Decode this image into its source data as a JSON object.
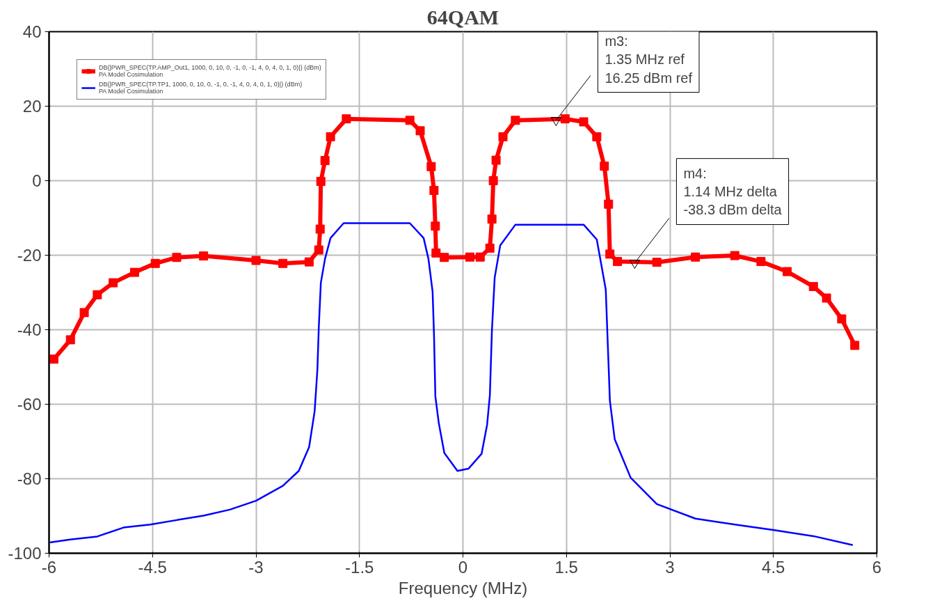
{
  "chart_data": {
    "type": "line",
    "title": "64QAM",
    "xlabel": "Frequency (MHz)",
    "xlim": [
      -6,
      6
    ],
    "xticks": [
      -6,
      -4.5,
      -3,
      -1.5,
      0,
      1.5,
      3,
      4.5,
      6
    ],
    "ylim": [
      -100,
      40
    ],
    "yticks": [
      -100,
      -80,
      -60,
      -40,
      -20,
      0,
      20,
      40
    ],
    "grid": true,
    "legend": "top left",
    "series": [
      {
        "name": "DB(|PWR_SPEC(TP.AMP_Out1, 1000, 0, 10, 0, -1, 0, -1, 4, 0, 4, 0, 1, 0)|) (dBm)\nPA Model Cosimulation",
        "color": "#ff0000",
        "marker": "square",
        "x": [
          -5.93,
          -5.69,
          -5.49,
          -5.3,
          -5.07,
          -4.76,
          -4.46,
          -4.15,
          -3.76,
          -3.0,
          -2.61,
          -2.23,
          -2.09,
          -2.07,
          -2.06,
          -2.0,
          -1.92,
          -1.69,
          -0.77,
          -0.62,
          -0.46,
          -0.42,
          -0.4,
          -0.39,
          -0.27,
          0.1,
          0.25,
          0.39,
          0.42,
          0.44,
          0.48,
          0.58,
          0.76,
          1.48,
          1.75,
          1.94,
          2.05,
          2.11,
          2.13,
          2.24,
          2.81,
          3.37,
          3.94,
          4.32,
          4.7,
          5.08,
          5.27,
          5.49,
          5.68
        ],
        "values": [
          -47.9,
          -42.7,
          -35.4,
          -30.6,
          -27.4,
          -24.6,
          -22.2,
          -20.6,
          -20.2,
          -21.4,
          -22.2,
          -21.8,
          -18.6,
          -13,
          -0.2,
          5.4,
          11.8,
          16.6,
          16.2,
          13.4,
          3.8,
          -2.6,
          -12.2,
          -19.4,
          -20.6,
          -20.5,
          -20.5,
          -18.1,
          -10.3,
          0,
          5.5,
          11.8,
          16.2,
          16.6,
          15.8,
          11.8,
          3.9,
          -6.3,
          -19.7,
          -21.7,
          -21.9,
          -20.5,
          -20.1,
          -21.7,
          -24.4,
          -28.4,
          -31.5,
          -37.1,
          -44.2
        ]
      },
      {
        "name": "DB(|PWR_SPEC(TP.TP1, 1000, 0, 10, 0, -1, 0, -1, 4, 0, 4, 0, 1, 0)|) (dBm)\nPA Model Cosimulation",
        "color": "#0000ff",
        "marker": "none",
        "x": [
          -5.99,
          -5.69,
          -5.3,
          -4.92,
          -4.53,
          -4.15,
          -3.76,
          -3.38,
          -3.0,
          -2.61,
          -2.38,
          -2.23,
          -2.15,
          -2.11,
          -2.09,
          -2.06,
          -2.0,
          -1.92,
          -1.73,
          -0.77,
          -0.57,
          -0.5,
          -0.44,
          -0.42,
          -0.4,
          -0.35,
          -0.27,
          -0.08,
          0.08,
          0.27,
          0.35,
          0.39,
          0.42,
          0.46,
          0.54,
          0.76,
          1.75,
          1.94,
          2.07,
          2.13,
          2.2,
          2.43,
          2.81,
          3.37,
          3.94,
          4.51,
          5.08,
          5.65
        ],
        "values": [
          -97.1,
          -96.3,
          -95.5,
          -93.1,
          -92.3,
          -91.1,
          -89.9,
          -88.3,
          -85.9,
          -81.9,
          -77.9,
          -71.5,
          -61.9,
          -50.7,
          -39.5,
          -27.4,
          -21.0,
          -15.4,
          -11.4,
          -11.4,
          -15.4,
          -21.0,
          -29.8,
          -41.1,
          -57.9,
          -65.1,
          -73.1,
          -77.9,
          -77.3,
          -73.3,
          -65.5,
          -57.6,
          -40.2,
          -26.0,
          -17.4,
          -11.8,
          -11.8,
          -15.8,
          -29.2,
          -59.1,
          -69.4,
          -79.7,
          -86.8,
          -90.7,
          -92.3,
          -93.8,
          -95.4,
          -97.8
        ]
      }
    ],
    "annotations": [
      {
        "text": "m3:\n1.35 MHz ref\n16.25 dBm ref",
        "x": 1.35,
        "y": 16.25
      },
      {
        "text": "m4:\n1.14 MHz delta\n-38.3 dBm delta",
        "x": 2.49,
        "y": -22.05
      }
    ]
  }
}
